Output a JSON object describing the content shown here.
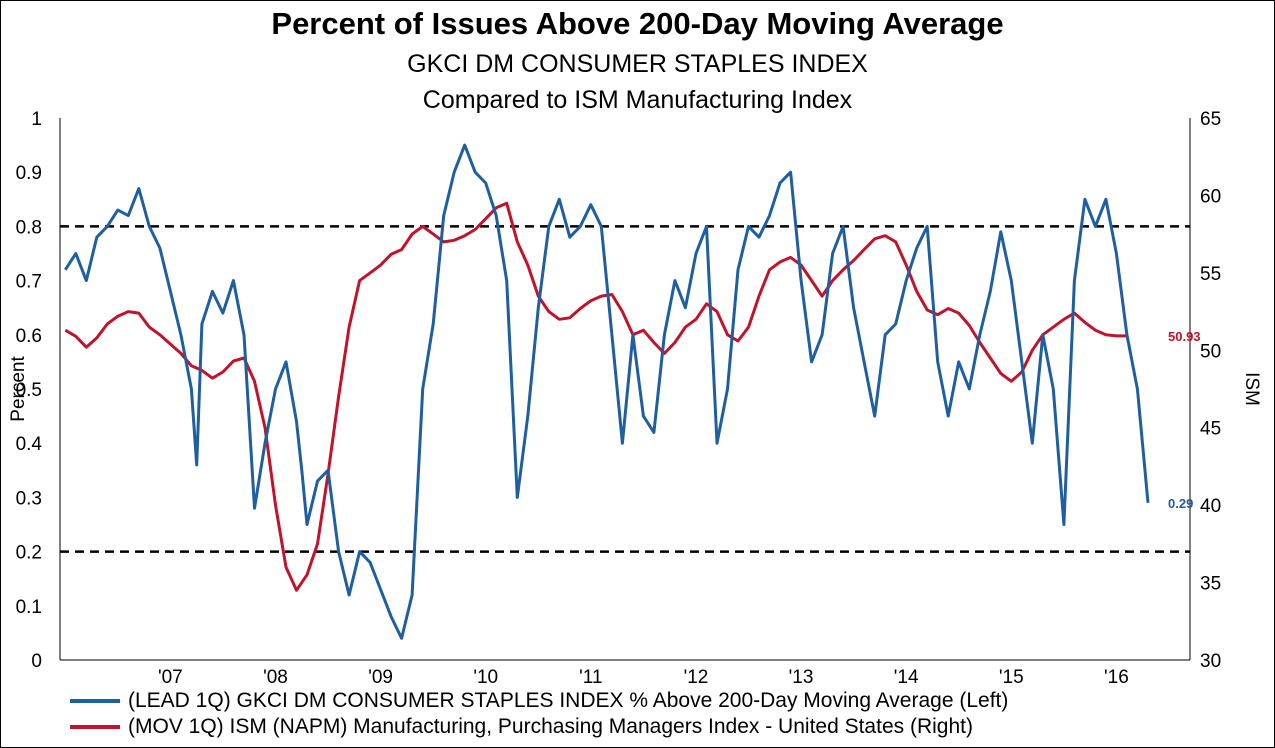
{
  "chart_data": {
    "type": "line",
    "title": "Percent of Issues Above 200-Day Moving Average",
    "subtitle": "GKCI DM CONSUMER STAPLES INDEX",
    "subtitle2": "Compared to ISM Manufacturing Index",
    "ylabel": "Percent",
    "y2label": "ISM",
    "ylim": [
      0,
      1
    ],
    "y2lim": [
      30,
      65
    ],
    "yticks": [
      "0",
      "0.1",
      "0.2",
      "0.3",
      "0.4",
      "0.5",
      "0.6",
      "0.7",
      "0.8",
      "0.9",
      "1"
    ],
    "y2ticks": [
      "30",
      "35",
      "40",
      "45",
      "50",
      "55",
      "60",
      "65"
    ],
    "xlim": [
      2006.45,
      2017.2
    ],
    "xticks": [
      {
        "label": "'07",
        "x": 2007
      },
      {
        "label": "'08",
        "x": 2008
      },
      {
        "label": "'09",
        "x": 2009
      },
      {
        "label": "'10",
        "x": 2010
      },
      {
        "label": "'11",
        "x": 2011
      },
      {
        "label": "'12",
        "x": 2012
      },
      {
        "label": "'13",
        "x": 2013
      },
      {
        "label": "'14",
        "x": 2014
      },
      {
        "label": "'15",
        "x": 2015
      },
      {
        "label": "'16",
        "x": 2016
      }
    ],
    "reference_lines": [
      0.8,
      0.2
    ],
    "grid": false,
    "legend_position": "bottom",
    "series": [
      {
        "name": "(LEAD 1Q) GKCI DM CONSUMER STAPLES INDEX % Above 200-Day Moving Average  (Left)",
        "axis": "left",
        "color": "#1f5fa0",
        "end_label": "0.29",
        "x": [
          2006.5,
          2006.6,
          2006.7,
          2006.8,
          2006.9,
          2007.0,
          2007.1,
          2007.2,
          2007.3,
          2007.4,
          2007.5,
          2007.6,
          2007.7,
          2007.75,
          2007.8,
          2007.9,
          2008.0,
          2008.1,
          2008.2,
          2008.3,
          2008.4,
          2008.5,
          2008.6,
          2008.7,
          2008.75,
          2008.8,
          2008.9,
          2009.0,
          2009.1,
          2009.2,
          2009.3,
          2009.4,
          2009.5,
          2009.6,
          2009.7,
          2009.8,
          2009.9,
          2010.0,
          2010.1,
          2010.2,
          2010.3,
          2010.4,
          2010.5,
          2010.6,
          2010.7,
          2010.8,
          2010.9,
          2011.0,
          2011.1,
          2011.2,
          2011.3,
          2011.4,
          2011.5,
          2011.6,
          2011.7,
          2011.8,
          2011.9,
          2012.0,
          2012.1,
          2012.2,
          2012.3,
          2012.4,
          2012.5,
          2012.6,
          2012.7,
          2012.8,
          2012.9,
          2013.0,
          2013.1,
          2013.2,
          2013.3,
          2013.4,
          2013.5,
          2013.6,
          2013.7,
          2013.8,
          2013.9,
          2014.0,
          2014.1,
          2014.2,
          2014.3,
          2014.4,
          2014.5,
          2014.6,
          2014.7,
          2014.8,
          2014.9,
          2015.0,
          2015.1,
          2015.2,
          2015.3,
          2015.4,
          2015.5,
          2015.6,
          2015.7,
          2015.8,
          2015.9,
          2016.0,
          2016.1,
          2016.2,
          2016.3,
          2016.4,
          2016.5,
          2016.6,
          2016.7,
          2016.8
        ],
        "values": [
          0.72,
          0.75,
          0.7,
          0.78,
          0.8,
          0.83,
          0.82,
          0.87,
          0.8,
          0.76,
          0.68,
          0.6,
          0.5,
          0.36,
          0.62,
          0.68,
          0.64,
          0.7,
          0.6,
          0.28,
          0.4,
          0.5,
          0.55,
          0.44,
          0.35,
          0.25,
          0.33,
          0.35,
          0.2,
          0.12,
          0.2,
          0.18,
          0.13,
          0.08,
          0.04,
          0.12,
          0.5,
          0.62,
          0.82,
          0.9,
          0.95,
          0.9,
          0.88,
          0.82,
          0.7,
          0.3,
          0.45,
          0.65,
          0.8,
          0.85,
          0.78,
          0.8,
          0.84,
          0.8,
          0.6,
          0.4,
          0.6,
          0.45,
          0.42,
          0.6,
          0.7,
          0.65,
          0.75,
          0.8,
          0.4,
          0.5,
          0.72,
          0.8,
          0.78,
          0.82,
          0.88,
          0.9,
          0.7,
          0.55,
          0.6,
          0.75,
          0.8,
          0.65,
          0.55,
          0.45,
          0.6,
          0.62,
          0.7,
          0.76,
          0.8,
          0.55,
          0.45,
          0.55,
          0.5,
          0.6,
          0.68,
          0.79,
          0.7,
          0.55,
          0.4,
          0.6,
          0.5,
          0.25,
          0.7,
          0.85,
          0.8,
          0.85,
          0.75,
          0.6,
          0.5,
          0.29
        ]
      },
      {
        "name": "(MOV 1Q) ISM (NAPM) Manufacturing, Purchasing Managers Index - United States  (Right)",
        "axis": "right",
        "color": "#c0142c",
        "end_label": "50.93",
        "x": [
          2006.5,
          2006.6,
          2006.7,
          2006.8,
          2006.9,
          2007.0,
          2007.1,
          2007.2,
          2007.3,
          2007.4,
          2007.5,
          2007.6,
          2007.7,
          2007.8,
          2007.9,
          2008.0,
          2008.1,
          2008.2,
          2008.3,
          2008.4,
          2008.5,
          2008.6,
          2008.7,
          2008.8,
          2008.9,
          2009.0,
          2009.1,
          2009.2,
          2009.3,
          2009.4,
          2009.5,
          2009.6,
          2009.7,
          2009.8,
          2009.9,
          2010.0,
          2010.1,
          2010.2,
          2010.3,
          2010.4,
          2010.5,
          2010.6,
          2010.7,
          2010.8,
          2010.9,
          2011.0,
          2011.1,
          2011.2,
          2011.3,
          2011.4,
          2011.5,
          2011.6,
          2011.7,
          2011.8,
          2011.9,
          2012.0,
          2012.1,
          2012.2,
          2012.3,
          2012.4,
          2012.5,
          2012.6,
          2012.7,
          2012.8,
          2012.9,
          2013.0,
          2013.1,
          2013.2,
          2013.3,
          2013.4,
          2013.5,
          2013.6,
          2013.7,
          2013.8,
          2013.9,
          2014.0,
          2014.1,
          2014.2,
          2014.3,
          2014.4,
          2014.5,
          2014.6,
          2014.7,
          2014.8,
          2014.9,
          2015.0,
          2015.1,
          2015.2,
          2015.3,
          2015.4,
          2015.5,
          2015.6,
          2015.7,
          2015.8,
          2015.9,
          2016.0,
          2016.1,
          2016.2,
          2016.3,
          2016.4,
          2016.5,
          2016.6
        ],
        "values": [
          51.3,
          50.9,
          50.2,
          50.8,
          51.7,
          52.2,
          52.5,
          52.4,
          51.5,
          51.0,
          50.4,
          49.8,
          49.0,
          48.7,
          48.2,
          48.6,
          49.3,
          49.5,
          48.0,
          45.0,
          40.0,
          36.0,
          34.5,
          35.5,
          37.5,
          42.0,
          47.0,
          51.5,
          54.5,
          55.0,
          55.5,
          56.2,
          56.5,
          57.5,
          58.0,
          57.5,
          57.0,
          57.1,
          57.4,
          57.8,
          58.5,
          59.2,
          59.5,
          57.0,
          55.5,
          53.5,
          52.5,
          52.0,
          52.1,
          52.7,
          53.2,
          53.5,
          53.6,
          52.5,
          51.0,
          51.3,
          50.5,
          49.8,
          50.5,
          51.5,
          52.0,
          53.0,
          52.5,
          51.0,
          50.6,
          51.5,
          53.5,
          55.2,
          55.7,
          56.0,
          55.5,
          54.5,
          53.5,
          54.5,
          55.2,
          55.8,
          56.5,
          57.2,
          57.4,
          57.0,
          55.5,
          53.8,
          52.6,
          52.3,
          52.7,
          52.4,
          51.6,
          50.5,
          49.5,
          48.5,
          48.0,
          48.6,
          50.0,
          51.0,
          51.5,
          52.0,
          52.4,
          51.8,
          51.3,
          51.0,
          50.93,
          50.93
        ]
      }
    ]
  }
}
